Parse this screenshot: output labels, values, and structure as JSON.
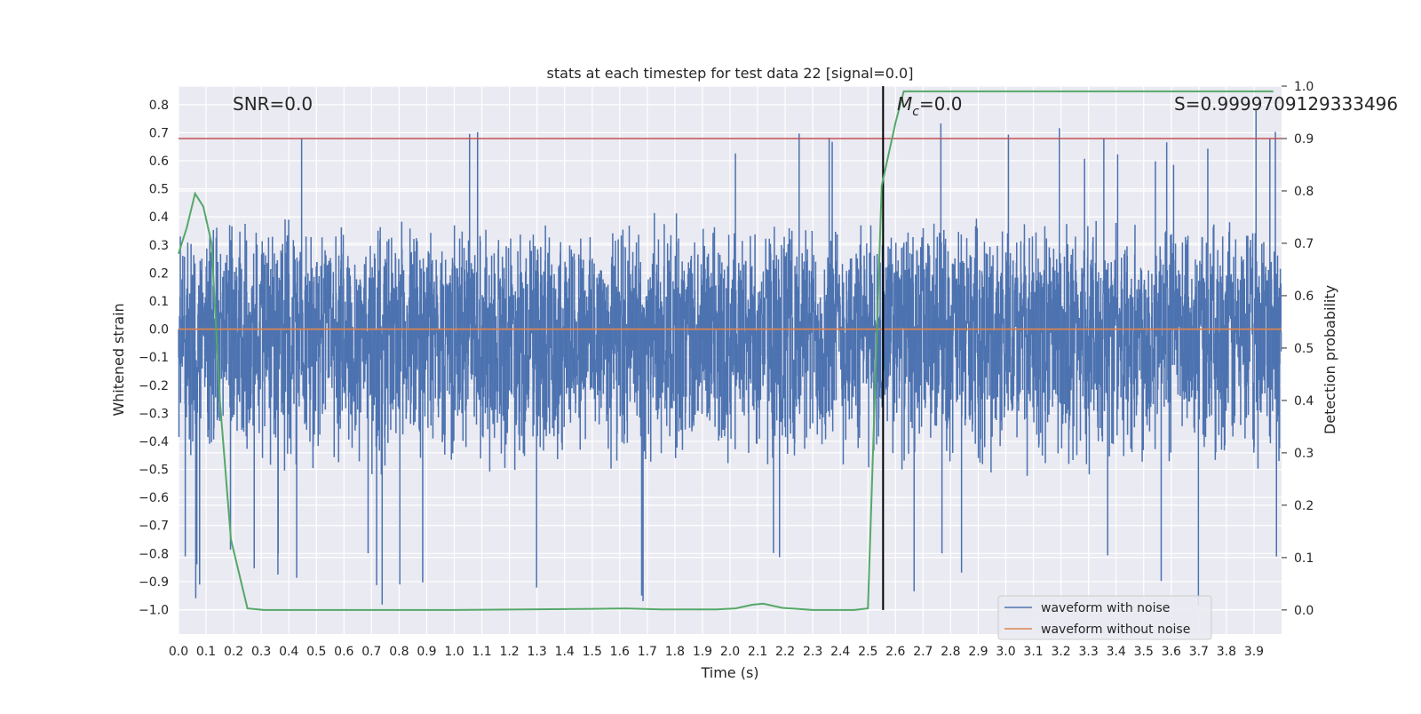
{
  "chart_data": {
    "type": "line",
    "title": "stats at each timestep for test data 22 [signal=0.0]",
    "xlabel": "Time (s)",
    "ylabel": "Whitened strain",
    "y2label": "Detection probability",
    "xlim": [
      0.0,
      4.0
    ],
    "ylim": [
      -1.087,
      0.866
    ],
    "y2lim": [
      -0.046,
      1.0
    ],
    "x_ticks": [
      "0.0",
      "0.1",
      "0.2",
      "0.3",
      "0.4",
      "0.5",
      "0.6",
      "0.7",
      "0.8",
      "0.9",
      "1.0",
      "1.1",
      "1.2",
      "1.3",
      "1.4",
      "1.5",
      "1.6",
      "1.7",
      "1.8",
      "1.9",
      "2.0",
      "2.1",
      "2.2",
      "2.3",
      "2.4",
      "2.5",
      "2.6",
      "2.7",
      "2.8",
      "2.9",
      "3.0",
      "3.1",
      "3.2",
      "3.3",
      "3.4",
      "3.5",
      "3.6",
      "3.7",
      "3.8",
      "3.9"
    ],
    "y_ticks": [
      "0.8",
      "0.7",
      "0.6",
      "0.5",
      "0.4",
      "0.3",
      "0.2",
      "0.1",
      "0.0",
      "-0.1",
      "-0.2",
      "-0.3",
      "-0.4",
      "-0.5",
      "-0.6",
      "-0.7",
      "-0.8",
      "-0.9",
      "-1.0"
    ],
    "y2_ticks": [
      "1.0",
      "0.9",
      "0.8",
      "0.7",
      "0.6",
      "0.5",
      "0.4",
      "0.3",
      "0.2",
      "0.1",
      "0.0"
    ],
    "grid": true,
    "legend": "lower-right",
    "annotations": {
      "snr": "SNR=0.0",
      "mc_prefix": "M",
      "mc_sub": "c",
      "mc_value": "=0.0",
      "score": "S=0.9999709129333496"
    },
    "threshold": {
      "value": 0.9,
      "axis": "y2",
      "color": "#c44e52"
    },
    "vline": {
      "x": 2.555,
      "color": "#000000"
    },
    "noise_envelope": {
      "samples": 4000,
      "typical_pos": 0.3,
      "typical_neg": -0.38,
      "max": 0.78,
      "min": -1.0
    },
    "series": [
      {
        "name": "waveform with noise",
        "color": "#4c72b0",
        "kind": "noise"
      },
      {
        "name": "waveform without noise",
        "color": "#dd8452",
        "x": [
          0.0,
          4.0
        ],
        "y": [
          0.0,
          0.0
        ]
      },
      {
        "name": "",
        "color": "#55a868",
        "axis": "y2",
        "x": [
          0.0,
          0.03,
          0.06,
          0.09,
          0.12,
          0.15,
          0.19,
          0.25,
          0.31,
          0.5,
          1.0,
          1.5,
          1.62,
          1.75,
          1.95,
          2.02,
          2.08,
          2.12,
          2.19,
          2.3,
          2.45,
          2.5,
          2.55,
          2.6,
          2.63,
          3.0,
          3.5,
          3.97
        ],
        "y": [
          0.68,
          0.73,
          0.795,
          0.77,
          0.7,
          0.4,
          0.135,
          0.003,
          0.0,
          0.0,
          0.0,
          0.002,
          0.003,
          0.001,
          0.001,
          0.003,
          0.01,
          0.012,
          0.004,
          0.0,
          0.0,
          0.003,
          0.81,
          0.93,
          0.99,
          0.99,
          0.99,
          0.99
        ]
      }
    ]
  }
}
